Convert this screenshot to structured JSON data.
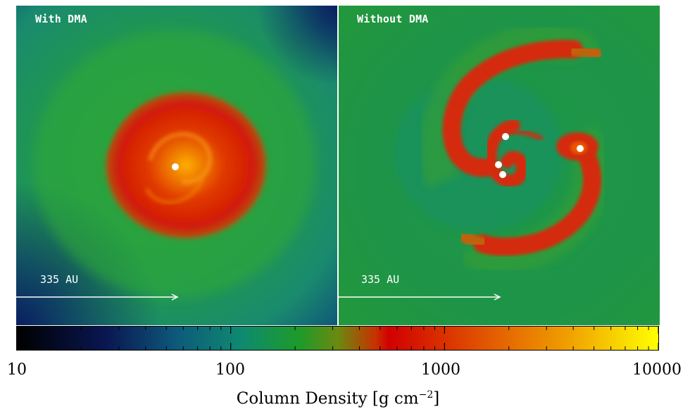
{
  "panels": {
    "left": {
      "label": "With DMA",
      "scale": "335 AU"
    },
    "right": {
      "label": "Without DMA",
      "scale": "335 AU"
    }
  },
  "colorbar": {
    "ticks": [
      "10",
      "100",
      "1000",
      "10000"
    ],
    "title": "Column Density [g cm",
    "title_sup": "−2",
    "title_end": "]",
    "scale": "log",
    "range": [
      10,
      10000
    ],
    "colors": [
      "#000000",
      "#0a1752",
      "#0e8a70",
      "#149a1f",
      "#d10000",
      "#e05800",
      "#ffff00"
    ]
  }
}
